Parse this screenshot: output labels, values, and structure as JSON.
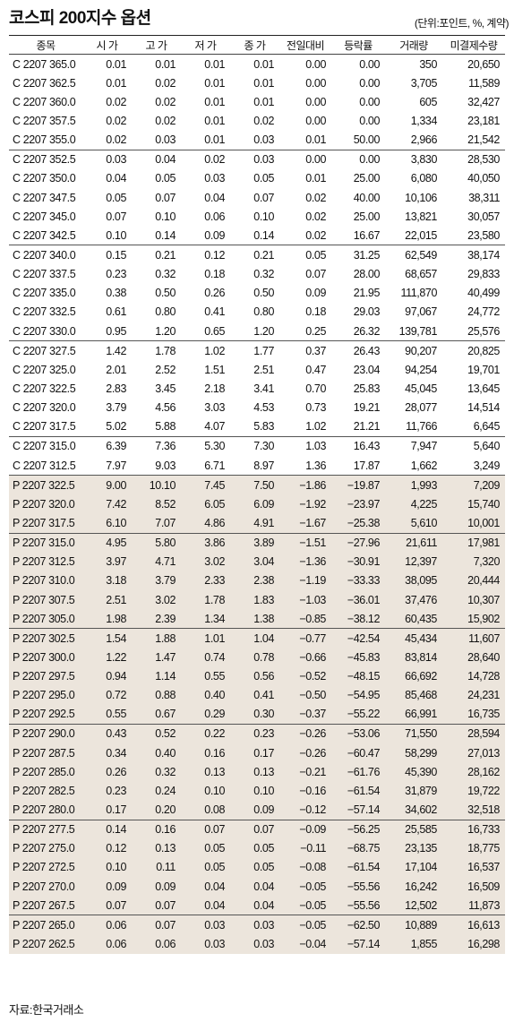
{
  "title": "코스피 200지수 옵션",
  "unit_note": "(단위:포인트, %, 계약)",
  "columns": [
    "종목",
    "시 가",
    "고 가",
    "저 가",
    "종 가",
    "전일대비",
    "등락률",
    "거래량",
    "미결제수량"
  ],
  "rows": [
    [
      "C 2207 365.0",
      "0.01",
      "0.01",
      "0.01",
      "0.01",
      "0.00",
      "0.00",
      "350",
      "20,650"
    ],
    [
      "C 2207 362.5",
      "0.01",
      "0.02",
      "0.01",
      "0.01",
      "0.00",
      "0.00",
      "3,705",
      "11,589"
    ],
    [
      "C 2207 360.0",
      "0.02",
      "0.02",
      "0.01",
      "0.01",
      "0.00",
      "0.00",
      "605",
      "32,427"
    ],
    [
      "C 2207 357.5",
      "0.02",
      "0.02",
      "0.01",
      "0.02",
      "0.00",
      "0.00",
      "1,334",
      "23,181"
    ],
    [
      "C 2207 355.0",
      "0.02",
      "0.03",
      "0.01",
      "0.03",
      "0.01",
      "50.00",
      "2,966",
      "21,542"
    ],
    [
      "C 2207 352.5",
      "0.03",
      "0.04",
      "0.02",
      "0.03",
      "0.00",
      "0.00",
      "3,830",
      "28,530"
    ],
    [
      "C 2207 350.0",
      "0.04",
      "0.05",
      "0.03",
      "0.05",
      "0.01",
      "25.00",
      "6,080",
      "40,050"
    ],
    [
      "C 2207 347.5",
      "0.05",
      "0.07",
      "0.04",
      "0.07",
      "0.02",
      "40.00",
      "10,106",
      "38,311"
    ],
    [
      "C 2207 345.0",
      "0.07",
      "0.10",
      "0.06",
      "0.10",
      "0.02",
      "25.00",
      "13,821",
      "30,057"
    ],
    [
      "C 2207 342.5",
      "0.10",
      "0.14",
      "0.09",
      "0.14",
      "0.02",
      "16.67",
      "22,015",
      "23,580"
    ],
    [
      "C 2207 340.0",
      "0.15",
      "0.21",
      "0.12",
      "0.21",
      "0.05",
      "31.25",
      "62,549",
      "38,174"
    ],
    [
      "C 2207 337.5",
      "0.23",
      "0.32",
      "0.18",
      "0.32",
      "0.07",
      "28.00",
      "68,657",
      "29,833"
    ],
    [
      "C 2207 335.0",
      "0.38",
      "0.50",
      "0.26",
      "0.50",
      "0.09",
      "21.95",
      "111,870",
      "40,499"
    ],
    [
      "C 2207 332.5",
      "0.61",
      "0.80",
      "0.41",
      "0.80",
      "0.18",
      "29.03",
      "97,067",
      "24,772"
    ],
    [
      "C 2207 330.0",
      "0.95",
      "1.20",
      "0.65",
      "1.20",
      "0.25",
      "26.32",
      "139,781",
      "25,576"
    ],
    [
      "C 2207 327.5",
      "1.42",
      "1.78",
      "1.02",
      "1.77",
      "0.37",
      "26.43",
      "90,207",
      "20,825"
    ],
    [
      "C 2207 325.0",
      "2.01",
      "2.52",
      "1.51",
      "2.51",
      "0.47",
      "23.04",
      "94,254",
      "19,701"
    ],
    [
      "C 2207 322.5",
      "2.83",
      "3.45",
      "2.18",
      "3.41",
      "0.70",
      "25.83",
      "45,045",
      "13,645"
    ],
    [
      "C 2207 320.0",
      "3.79",
      "4.56",
      "3.03",
      "4.53",
      "0.73",
      "19.21",
      "28,077",
      "14,514"
    ],
    [
      "C 2207 317.5",
      "5.02",
      "5.88",
      "4.07",
      "5.83",
      "1.02",
      "21.21",
      "11,766",
      "6,645"
    ],
    [
      "C 2207 315.0",
      "6.39",
      "7.36",
      "5.30",
      "7.30",
      "1.03",
      "16.43",
      "7,947",
      "5,640"
    ],
    [
      "C 2207 312.5",
      "7.97",
      "9.03",
      "6.71",
      "8.97",
      "1.36",
      "17.87",
      "1,662",
      "3,249"
    ],
    [
      "P 2207 322.5",
      "9.00",
      "10.10",
      "7.45",
      "7.50",
      "−1.86",
      "−19.87",
      "1,993",
      "7,209"
    ],
    [
      "P 2207 320.0",
      "7.42",
      "8.52",
      "6.05",
      "6.09",
      "−1.92",
      "−23.97",
      "4,225",
      "15,740"
    ],
    [
      "P 2207 317.5",
      "6.10",
      "7.07",
      "4.86",
      "4.91",
      "−1.67",
      "−25.38",
      "5,610",
      "10,001"
    ],
    [
      "P 2207 315.0",
      "4.95",
      "5.80",
      "3.86",
      "3.89",
      "−1.51",
      "−27.96",
      "21,611",
      "17,981"
    ],
    [
      "P 2207 312.5",
      "3.97",
      "4.71",
      "3.02",
      "3.04",
      "−1.36",
      "−30.91",
      "12,397",
      "7,320"
    ],
    [
      "P 2207 310.0",
      "3.18",
      "3.79",
      "2.33",
      "2.38",
      "−1.19",
      "−33.33",
      "38,095",
      "20,444"
    ],
    [
      "P 2207 307.5",
      "2.51",
      "3.02",
      "1.78",
      "1.83",
      "−1.03",
      "−36.01",
      "37,476",
      "10,307"
    ],
    [
      "P 2207 305.0",
      "1.98",
      "2.39",
      "1.34",
      "1.38",
      "−0.85",
      "−38.12",
      "60,435",
      "15,902"
    ],
    [
      "P 2207 302.5",
      "1.54",
      "1.88",
      "1.01",
      "1.04",
      "−0.77",
      "−42.54",
      "45,434",
      "11,607"
    ],
    [
      "P 2207 300.0",
      "1.22",
      "1.47",
      "0.74",
      "0.78",
      "−0.66",
      "−45.83",
      "83,814",
      "28,640"
    ],
    [
      "P 2207 297.5",
      "0.94",
      "1.14",
      "0.55",
      "0.56",
      "−0.52",
      "−48.15",
      "66,692",
      "14,728"
    ],
    [
      "P 2207 295.0",
      "0.72",
      "0.88",
      "0.40",
      "0.41",
      "−0.50",
      "−54.95",
      "85,468",
      "24,231"
    ],
    [
      "P 2207 292.5",
      "0.55",
      "0.67",
      "0.29",
      "0.30",
      "−0.37",
      "−55.22",
      "66,991",
      "16,735"
    ],
    [
      "P 2207 290.0",
      "0.43",
      "0.52",
      "0.22",
      "0.23",
      "−0.26",
      "−53.06",
      "71,550",
      "28,594"
    ],
    [
      "P 2207 287.5",
      "0.34",
      "0.40",
      "0.16",
      "0.17",
      "−0.26",
      "−60.47",
      "58,299",
      "27,013"
    ],
    [
      "P 2207 285.0",
      "0.26",
      "0.32",
      "0.13",
      "0.13",
      "−0.21",
      "−61.76",
      "45,390",
      "28,162"
    ],
    [
      "P 2207 282.5",
      "0.23",
      "0.24",
      "0.10",
      "0.10",
      "−0.16",
      "−61.54",
      "31,879",
      "19,722"
    ],
    [
      "P 2207 280.0",
      "0.17",
      "0.20",
      "0.08",
      "0.09",
      "−0.12",
      "−57.14",
      "34,602",
      "32,518"
    ],
    [
      "P 2207 277.5",
      "0.14",
      "0.16",
      "0.07",
      "0.07",
      "−0.09",
      "−56.25",
      "25,585",
      "16,733"
    ],
    [
      "P 2207 275.0",
      "0.12",
      "0.13",
      "0.05",
      "0.05",
      "−0.11",
      "−68.75",
      "23,135",
      "18,775"
    ],
    [
      "P 2207 272.5",
      "0.10",
      "0.11",
      "0.05",
      "0.05",
      "−0.08",
      "−61.54",
      "17,104",
      "16,537"
    ],
    [
      "P 2207 270.0",
      "0.09",
      "0.09",
      "0.04",
      "0.04",
      "−0.05",
      "−55.56",
      "16,242",
      "16,509"
    ],
    [
      "P 2207 267.5",
      "0.07",
      "0.07",
      "0.04",
      "0.04",
      "−0.05",
      "−55.56",
      "12,502",
      "11,873"
    ],
    [
      "P 2207 265.0",
      "0.06",
      "0.07",
      "0.03",
      "0.03",
      "−0.05",
      "−62.50",
      "10,889",
      "16,613"
    ],
    [
      "P 2207 262.5",
      "0.06",
      "0.06",
      "0.03",
      "0.03",
      "−0.04",
      "−57.14",
      "1,855",
      "16,298"
    ]
  ],
  "source": "자료:한국거래소"
}
